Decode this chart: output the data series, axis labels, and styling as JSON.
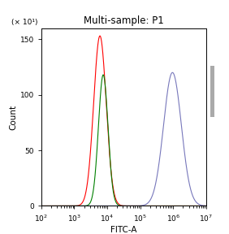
{
  "title": "Multi-sample: P1",
  "xlabel": "FITC-A",
  "ylabel": "Count",
  "ylabel2": "(× 10¹)",
  "xlim_log": [
    2,
    7
  ],
  "ylim": [
    0,
    160
  ],
  "yticks": [
    0,
    50,
    100,
    150
  ],
  "background_color": "#ffffff",
  "curves": [
    {
      "color": "red",
      "peak_log": 3.78,
      "peak_height": 153,
      "sigma_log": 0.19,
      "lw": 0.8
    },
    {
      "color": "green",
      "peak_log": 3.88,
      "peak_height": 118,
      "sigma_log": 0.145,
      "lw": 0.8
    },
    {
      "color": "#7777bb",
      "peak_log": 5.98,
      "peak_height": 120,
      "sigma_log": 0.27,
      "lw": 0.8
    }
  ],
  "title_fontsize": 8.5,
  "axis_fontsize": 7.5,
  "tick_fontsize": 6.5
}
